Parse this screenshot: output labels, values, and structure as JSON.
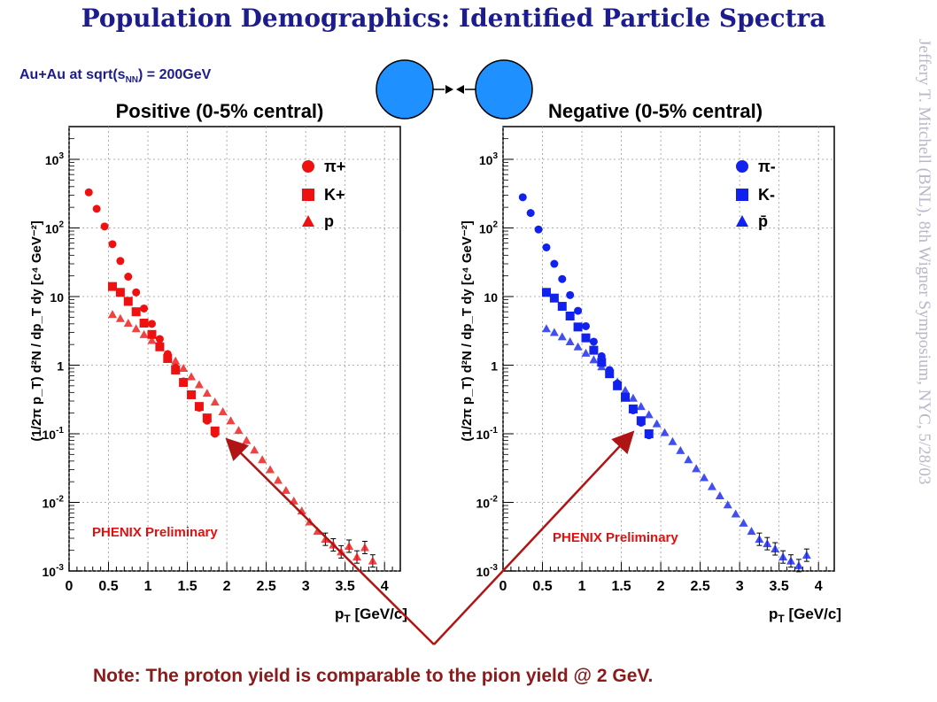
{
  "title": "Population Demographics: Identified Particle Spectra",
  "subtitle_prefix": "Au+Au at sqrt(s",
  "subtitle_sub": "NN",
  "subtitle_suffix": ") = 200GeV",
  "side_text": "Jeffery T. Mitchell (BNL), 8th Wigner Symposium, NYC, 5/28/03",
  "note": "Note: The proton yield is comparable to the pion yield @ 2 GeV.",
  "colors": {
    "title": "#1c1c8c",
    "note": "#8b1a1a",
    "arrow": "#b01515",
    "circle": "#1e90ff",
    "positive": "#ee1111",
    "negative": "#1122ee"
  },
  "chart_data": [
    {
      "type": "scatter",
      "panel": "left",
      "title": "Positive (0-5% central)",
      "ylabel": "(1/2π p_T) d²N / dp_T dy [c⁴ GeV⁻²]",
      "xlabel": "p_T [GeV/c]",
      "xlim": [
        0,
        4.2
      ],
      "ylim": [
        0.001,
        3000
      ],
      "yscale": "log",
      "x_ticks": [
        "0",
        "0.5",
        "1",
        "1.5",
        "2",
        "2.5",
        "3",
        "3.5",
        "4"
      ],
      "y_ticks": [
        "10^3",
        "10^2",
        "10",
        "1",
        "10^-1",
        "10^-2",
        "10^-3"
      ],
      "annotation": "PHENIX Preliminary",
      "legend": [
        "π+",
        "K+",
        "p"
      ],
      "series": [
        {
          "name": "π+",
          "marker": "circle",
          "x": [
            0.25,
            0.35,
            0.45,
            0.55,
            0.65,
            0.75,
            0.85,
            0.95,
            1.05,
            1.15,
            1.25,
            1.35,
            1.45,
            1.55,
            1.65,
            1.75,
            1.85
          ],
          "y": [
            330,
            190,
            105,
            58,
            33,
            19.5,
            11.5,
            6.7,
            4.0,
            2.4,
            1.45,
            0.92,
            0.58,
            0.37,
            0.24,
            0.155,
            0.1
          ]
        },
        {
          "name": "K+",
          "marker": "square",
          "x": [
            0.55,
            0.65,
            0.75,
            0.85,
            0.95,
            1.05,
            1.15,
            1.25,
            1.35,
            1.45,
            1.55,
            1.65,
            1.75,
            1.85
          ],
          "y": [
            14,
            11.5,
            8.5,
            6.0,
            4.1,
            2.8,
            1.85,
            1.25,
            0.85,
            0.56,
            0.37,
            0.25,
            0.17,
            0.11
          ]
        },
        {
          "name": "p",
          "marker": "triangle",
          "x": [
            0.55,
            0.65,
            0.75,
            0.85,
            0.95,
            1.05,
            1.15,
            1.25,
            1.35,
            1.45,
            1.55,
            1.65,
            1.75,
            1.85,
            1.95,
            2.05,
            2.15,
            2.25,
            2.35,
            2.45,
            2.55,
            2.65,
            2.75,
            2.85,
            2.95,
            3.05,
            3.15,
            3.25,
            3.35,
            3.45,
            3.55,
            3.65,
            3.75,
            3.85
          ],
          "y": [
            5.5,
            4.8,
            4.1,
            3.4,
            2.8,
            2.3,
            1.85,
            1.45,
            1.15,
            0.9,
            0.68,
            0.52,
            0.39,
            0.29,
            0.21,
            0.155,
            0.112,
            0.08,
            0.058,
            0.042,
            0.03,
            0.021,
            0.015,
            0.0105,
            0.0075,
            0.0052,
            0.0038,
            0.0029,
            0.0024,
            0.0019,
            0.0023,
            0.0016,
            0.0022,
            0.0014
          ]
        }
      ]
    },
    {
      "type": "scatter",
      "panel": "right",
      "title": "Negative (0-5% central)",
      "ylabel": "(1/2π p_T) d²N / dp_T dy [c⁴ GeV⁻²]",
      "xlabel": "p_T [GeV/c]",
      "xlim": [
        0,
        4.2
      ],
      "ylim": [
        0.001,
        3000
      ],
      "yscale": "log",
      "x_ticks": [
        "0",
        "0.5",
        "1",
        "1.5",
        "2",
        "2.5",
        "3",
        "3.5",
        "4"
      ],
      "y_ticks": [
        "10^3",
        "10^2",
        "10",
        "1",
        "10^-1",
        "10^-2",
        "10^-3"
      ],
      "annotation": "PHENIX Preliminary",
      "legend": [
        "π-",
        "K-",
        "p̄"
      ],
      "series": [
        {
          "name": "π-",
          "marker": "circle",
          "x": [
            0.25,
            0.35,
            0.45,
            0.55,
            0.65,
            0.75,
            0.85,
            0.95,
            1.05,
            1.15,
            1.25,
            1.35,
            1.45,
            1.55,
            1.65,
            1.75,
            1.85
          ],
          "y": [
            280,
            165,
            95,
            52,
            30,
            18,
            10.5,
            6.2,
            3.7,
            2.2,
            1.35,
            0.85,
            0.54,
            0.35,
            0.22,
            0.145,
            0.095
          ]
        },
        {
          "name": "K-",
          "marker": "square",
          "x": [
            0.55,
            0.65,
            0.75,
            0.85,
            0.95,
            1.05,
            1.15,
            1.25,
            1.35,
            1.45,
            1.55,
            1.65,
            1.75,
            1.85
          ],
          "y": [
            11.5,
            9.5,
            7.2,
            5.2,
            3.6,
            2.5,
            1.65,
            1.1,
            0.75,
            0.5,
            0.34,
            0.23,
            0.155,
            0.1
          ]
        },
        {
          "name": "p̄",
          "marker": "triangle",
          "x": [
            0.55,
            0.65,
            0.75,
            0.85,
            0.95,
            1.05,
            1.15,
            1.25,
            1.35,
            1.45,
            1.55,
            1.65,
            1.75,
            1.85,
            1.95,
            2.05,
            2.15,
            2.25,
            2.35,
            2.45,
            2.55,
            2.65,
            2.75,
            2.85,
            2.95,
            3.05,
            3.15,
            3.25,
            3.35,
            3.45,
            3.55,
            3.65,
            3.75,
            3.85
          ],
          "y": [
            3.4,
            3.0,
            2.6,
            2.2,
            1.85,
            1.5,
            1.2,
            0.95,
            0.74,
            0.57,
            0.43,
            0.33,
            0.25,
            0.19,
            0.14,
            0.104,
            0.077,
            0.057,
            0.042,
            0.031,
            0.023,
            0.017,
            0.0125,
            0.0092,
            0.0068,
            0.005,
            0.0038,
            0.0029,
            0.0025,
            0.0021,
            0.0016,
            0.0014,
            0.0012,
            0.0017
          ]
        }
      ]
    }
  ]
}
